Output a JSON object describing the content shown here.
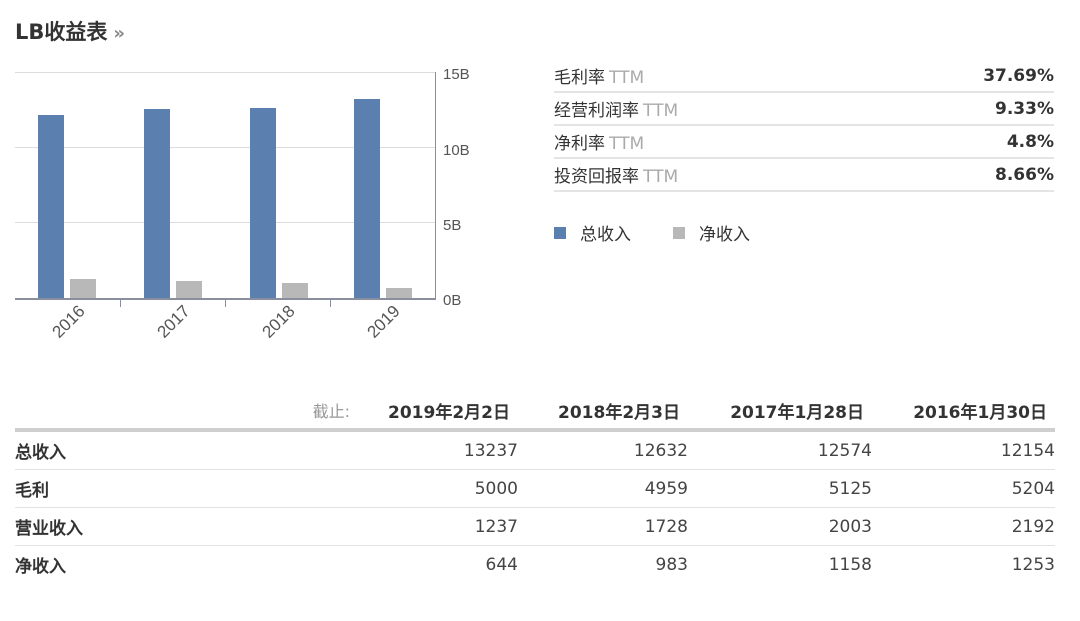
{
  "header": {
    "title": "LB收益表",
    "more_icon": "double-chevron-right"
  },
  "colors": {
    "revenue": "#5b7fae",
    "net_income": "#b8b8b8"
  },
  "chart_data": {
    "type": "bar",
    "title": "",
    "categories": [
      "2016",
      "2017",
      "2018",
      "2019"
    ],
    "series": [
      {
        "name": "总收入",
        "values": [
          12.154,
          12.574,
          12.632,
          13.237
        ],
        "color": "#5b7fae"
      },
      {
        "name": "净收入",
        "values": [
          1.253,
          1.158,
          0.983,
          0.644
        ],
        "color": "#b8b8b8"
      }
    ],
    "xlabel": "",
    "ylabel": "",
    "y_unit": "B",
    "ylim": [
      0,
      15
    ],
    "yticks": [
      "0B",
      "5B",
      "10B",
      "15B"
    ],
    "y_axis_position": "right",
    "grid": true,
    "legend_position": "right-panel"
  },
  "metrics": [
    {
      "label": "毛利率",
      "suffix": "TTM",
      "value": "37.69%"
    },
    {
      "label": "经营利润率",
      "suffix": "TTM",
      "value": "9.33%"
    },
    {
      "label": "净利率",
      "suffix": "TTM",
      "value": "4.8%"
    },
    {
      "label": "投资回报率",
      "suffix": "TTM",
      "value": "8.66%"
    }
  ],
  "legend": [
    {
      "label": "总收入",
      "color": "#5b7fae"
    },
    {
      "label": "净收入",
      "color": "#b8b8b8"
    }
  ],
  "table": {
    "as_of_label": "截止:",
    "columns": [
      "2019年2月2日",
      "2018年2月3日",
      "2017年1月28日",
      "2016年1月30日"
    ],
    "rows": [
      {
        "name": "总收入",
        "values": [
          "13237",
          "12632",
          "12574",
          "12154"
        ]
      },
      {
        "name": "毛利",
        "values": [
          "5000",
          "4959",
          "5125",
          "5204"
        ]
      },
      {
        "name": "营业收入",
        "values": [
          "1237",
          "1728",
          "2003",
          "2192"
        ]
      },
      {
        "name": "净收入",
        "values": [
          "644",
          "983",
          "1158",
          "1253"
        ]
      }
    ]
  }
}
